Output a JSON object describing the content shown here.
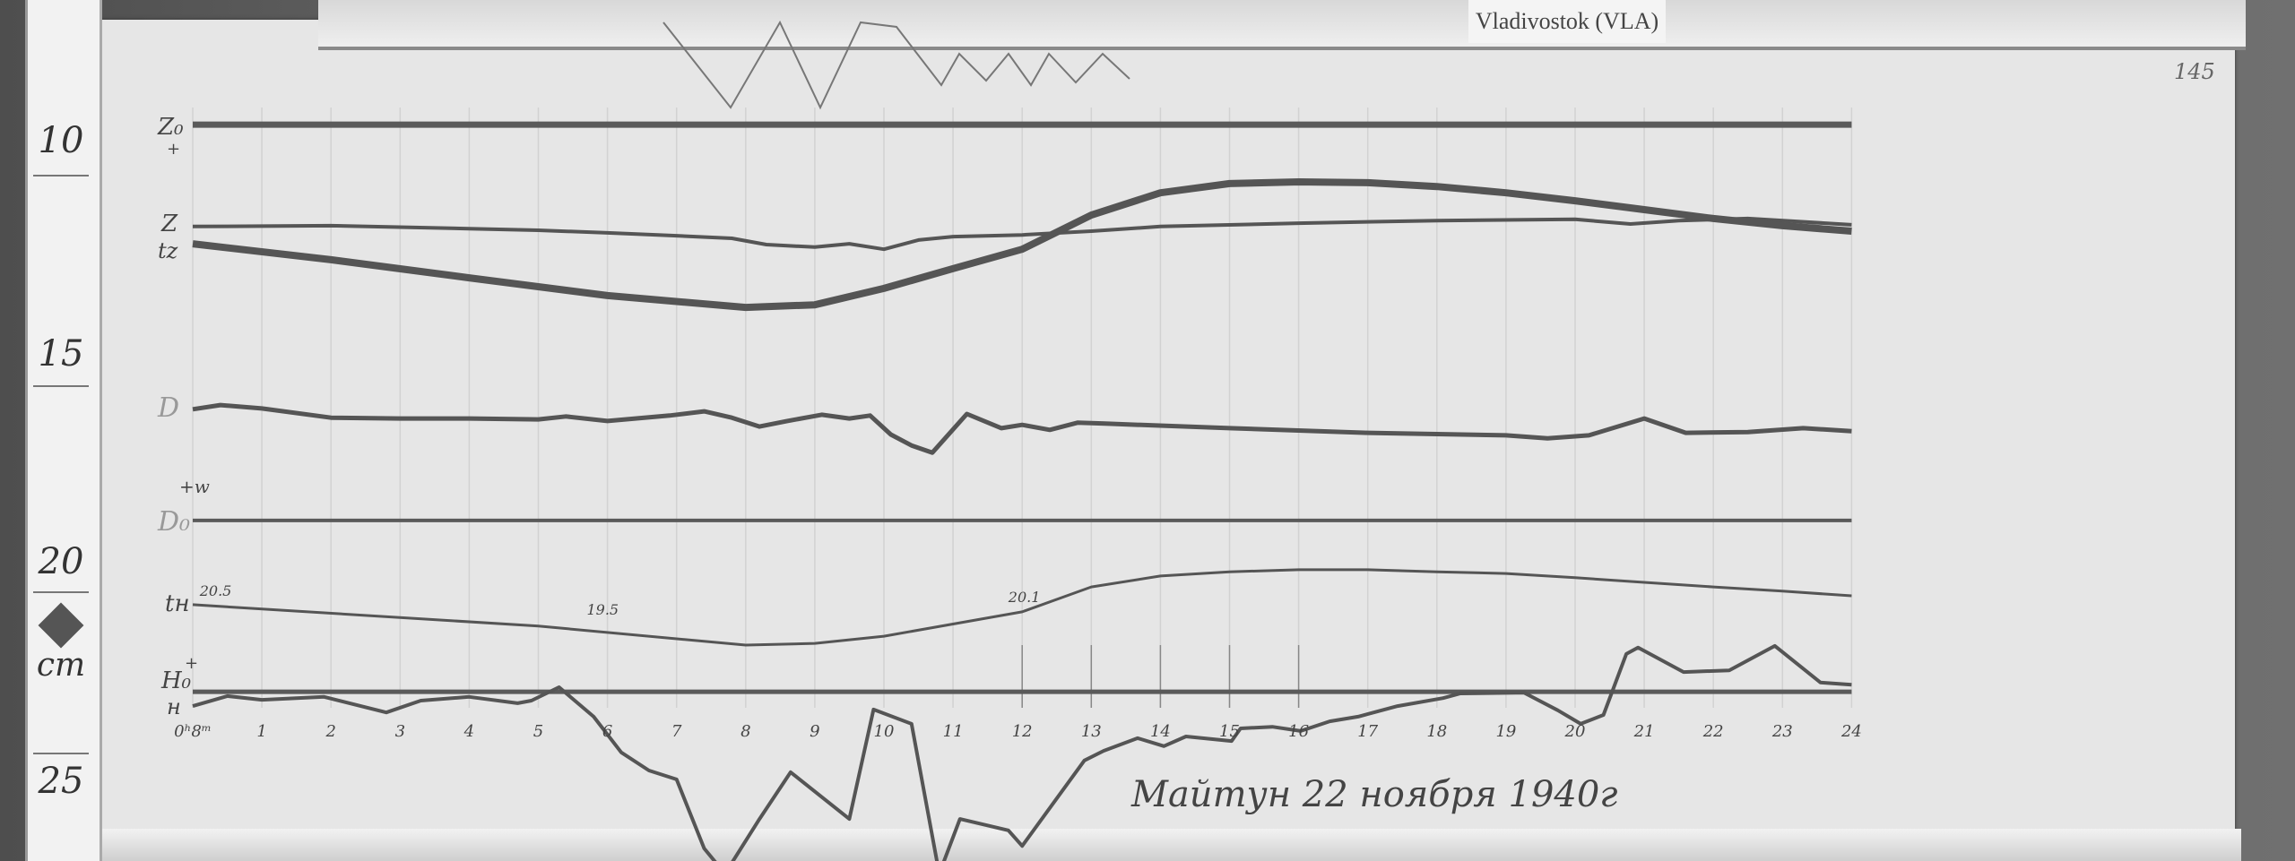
{
  "station_label": "Vladivostok (VLA)",
  "sheet_number": "145",
  "caption": "Майтун 22 ноября 1940г",
  "ruler": {
    "labels": [
      "10",
      "15",
      "20",
      "cm",
      "25"
    ]
  },
  "colors": {
    "paper": "#e6e6e6",
    "trace": "#555555",
    "background": "#5a5a5a"
  },
  "chart_data": {
    "type": "line",
    "x_unit": "hours",
    "y_unit": "cm (ruler)",
    "xlim": [
      0,
      24
    ],
    "ylim": [
      8,
      26.3
    ],
    "x_ticks": [
      "0ʰ8ᵐ",
      "1",
      "2",
      "3",
      "4",
      "5",
      "6",
      "7",
      "8",
      "9",
      "10",
      "11",
      "12",
      "13",
      "14",
      "15",
      "16",
      "17",
      "18",
      "19",
      "20",
      "21",
      "22",
      "23",
      "24"
    ],
    "trace_labels": {
      "Z0": "Z₀",
      "Z0_sign": "+",
      "Z": "Z",
      "tz": "tz",
      "D": "D",
      "D0": "D₀",
      "D0_sign": "+w",
      "tn": "tн",
      "H0": "H₀",
      "H0_sign": "+",
      "H": "н"
    },
    "annotations": [
      {
        "text": "20.5",
        "x": 0.1,
        "y": 20.0
      },
      {
        "text": "19.5",
        "x": 5.7,
        "y": 20.45
      },
      {
        "text": "20.1",
        "x": 11.8,
        "y": 20.15
      }
    ],
    "baselines": [
      {
        "name": "Z0",
        "y": 8.81
      },
      {
        "name": "D0",
        "y": 18.21
      },
      {
        "name": "H0",
        "y": 22.28
      }
    ],
    "series": [
      {
        "name": "Z",
        "x": [
          0,
          2,
          4,
          5,
          6,
          7,
          7.8,
          8.3,
          9,
          9.5,
          10,
          10.5,
          11,
          12,
          13,
          14,
          16,
          18,
          20,
          20.8,
          21.5,
          22.5,
          24
        ],
        "y": [
          11.23,
          11.21,
          11.28,
          11.32,
          11.38,
          11.45,
          11.51,
          11.66,
          11.72,
          11.64,
          11.77,
          11.55,
          11.47,
          11.43,
          11.34,
          11.23,
          11.15,
          11.09,
          11.06,
          11.17,
          11.09,
          11.04,
          11.19
        ]
      },
      {
        "name": "tz",
        "x": [
          0,
          2,
          4,
          6,
          8,
          9,
          10,
          11,
          12,
          13,
          14,
          15,
          16,
          17,
          18,
          19,
          20,
          21,
          22,
          23,
          24
        ],
        "y": [
          11.64,
          12.02,
          12.45,
          12.87,
          13.15,
          13.09,
          12.7,
          12.23,
          11.77,
          10.96,
          10.43,
          10.21,
          10.17,
          10.19,
          10.28,
          10.43,
          10.62,
          10.83,
          11.04,
          11.21,
          11.34
        ]
      },
      {
        "name": "D",
        "x": [
          0,
          0.4,
          1,
          2,
          3,
          4,
          5,
          5.4,
          6,
          6.9,
          7.4,
          7.8,
          8.2,
          8.6,
          9.1,
          9.5,
          9.8,
          10.1,
          10.4,
          10.7,
          11.2,
          11.7,
          12,
          12.4,
          12.8,
          13.2,
          15,
          17,
          19,
          19.6,
          20.2,
          21,
          21.6,
          22.5,
          23.3,
          24
        ],
        "y": [
          15.57,
          15.47,
          15.55,
          15.77,
          15.79,
          15.79,
          15.81,
          15.74,
          15.85,
          15.72,
          15.62,
          15.77,
          15.98,
          15.85,
          15.7,
          15.79,
          15.72,
          16.17,
          16.43,
          16.6,
          15.68,
          16.02,
          15.94,
          16.06,
          15.89,
          15.91,
          16.02,
          16.13,
          16.19,
          16.26,
          16.19,
          15.79,
          16.13,
          16.11,
          16.02,
          16.09
        ]
      },
      {
        "name": "tn",
        "x": [
          0,
          5,
          8,
          9,
          10,
          12,
          13,
          14,
          15,
          16,
          17,
          18,
          19,
          20,
          21,
          22,
          23,
          24
        ],
        "y": [
          20.21,
          20.72,
          21.17,
          21.13,
          20.96,
          20.38,
          19.79,
          19.53,
          19.43,
          19.38,
          19.38,
          19.43,
          19.47,
          19.57,
          19.68,
          19.79,
          19.89,
          20.0
        ]
      },
      {
        "name": "H",
        "x": [
          0,
          0.5,
          1,
          1.9,
          2.8,
          3.3,
          4,
          4.7,
          4.9,
          5.3,
          5.8,
          6.2,
          6.6,
          7,
          7.4,
          7.7,
          8.2,
          8.65,
          9.5,
          9.85,
          10.4,
          10.8,
          11.1,
          11.8,
          12,
          12.9,
          13.18,
          13.67,
          14.05,
          14.37,
          15.03,
          15.16,
          15.62,
          16.03,
          16.45,
          16.86,
          17.43,
          18.09,
          18.34,
          19.26,
          19.75,
          20.08,
          20.41,
          20.74,
          20.91,
          21.57,
          22.23,
          22.89,
          23.55,
          24
        ],
        "y": [
          22.62,
          22.38,
          22.47,
          22.4,
          22.77,
          22.49,
          22.4,
          22.55,
          22.49,
          22.17,
          22.87,
          23.72,
          24.15,
          24.36,
          26.0,
          26.6,
          25.3,
          24.19,
          25.3,
          22.7,
          23.04,
          26.6,
          25.3,
          25.57,
          25.94,
          23.91,
          23.68,
          23.38,
          23.57,
          23.34,
          23.45,
          23.15,
          23.11,
          23.21,
          22.98,
          22.87,
          22.62,
          22.43,
          22.32,
          22.3,
          22.72,
          23.04,
          22.83,
          21.38,
          21.23,
          21.81,
          21.77,
          21.19,
          22.06,
          22.11
        ]
      }
    ]
  }
}
